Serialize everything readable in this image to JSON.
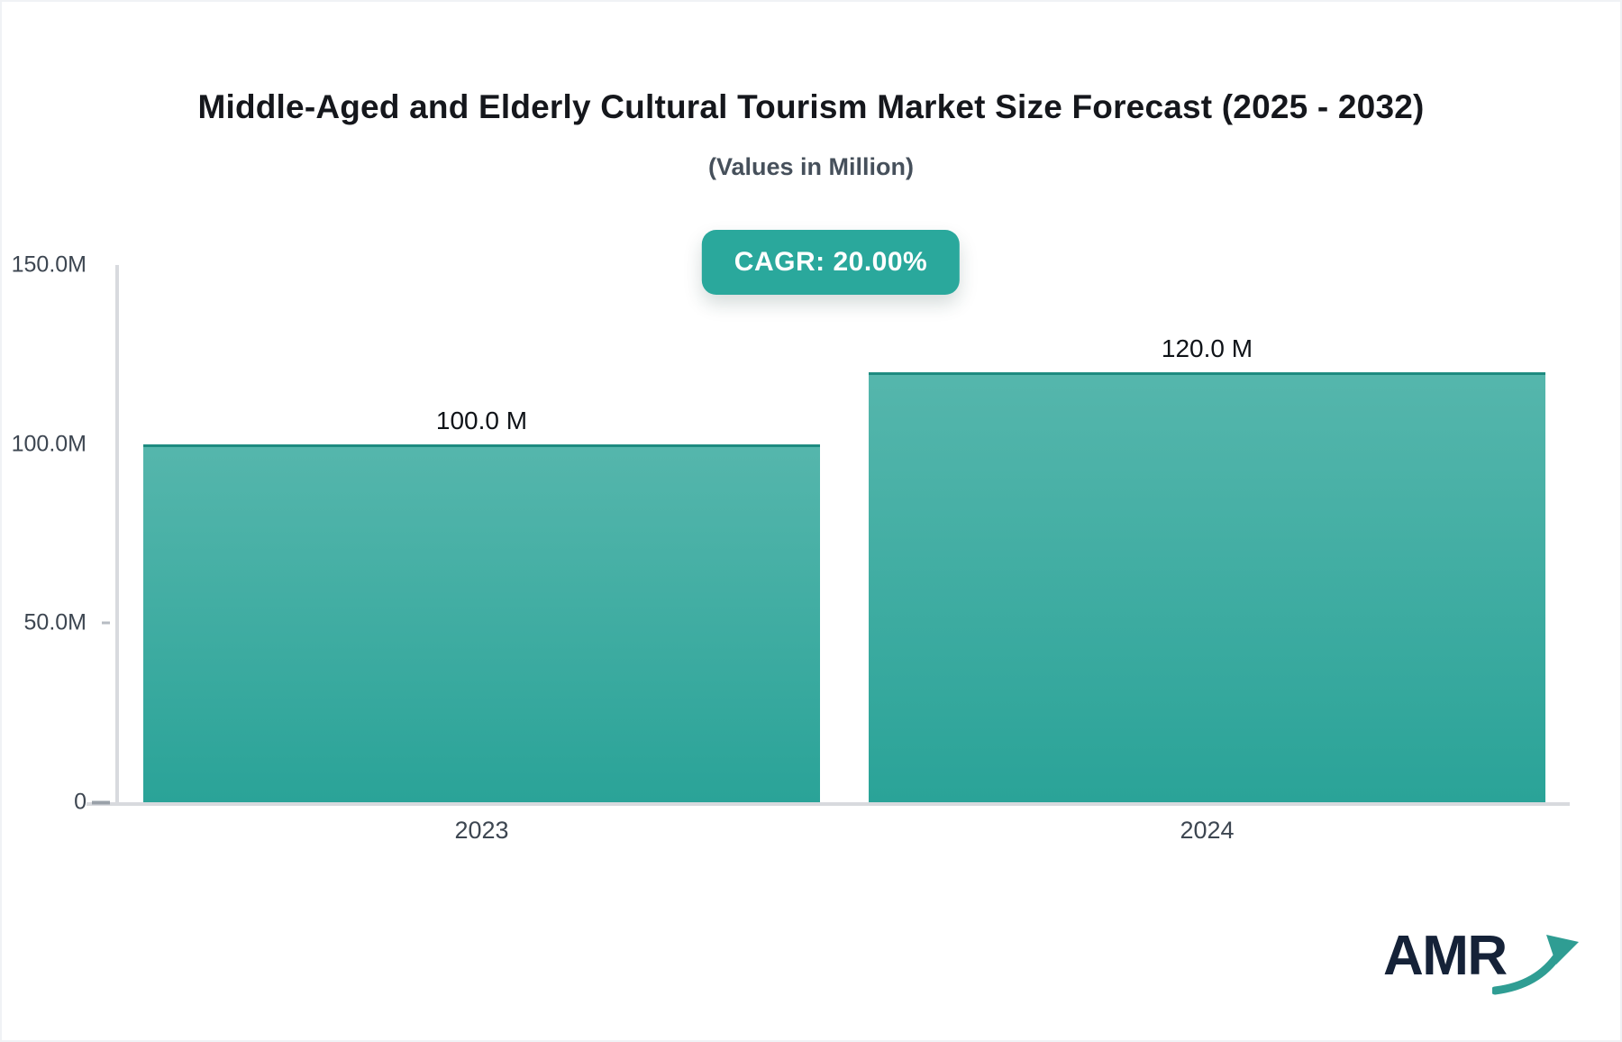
{
  "page": {
    "title": "Middle-Aged and Elderly Cultural Tourism Market Size Forecast (2025 - 2032)",
    "subtitle": "(Values in Million)",
    "cagr_badge": "CAGR: 20.00%",
    "logo_text": "AMR"
  },
  "colors": {
    "badge_bg": "#2aa89c",
    "bar_gradient_top": "#55b6ac",
    "bar_gradient_bottom": "#2aa398",
    "bar_top_border": "#1e8b80",
    "axis_line": "#d8dade",
    "tick_text": "#3d4651",
    "title_text": "#15171c",
    "logo_navy": "#152238",
    "logo_arrow_teal": "#2f9d93"
  },
  "chart_data": {
    "type": "bar",
    "categories": [
      "2023",
      "2024"
    ],
    "values": [
      100.0,
      120.0
    ],
    "value_labels": [
      "100.0 M",
      "120.0 M"
    ],
    "unit": "Million",
    "title": "Middle-Aged and Elderly Cultural Tourism Market Size Forecast (2025 - 2032)",
    "subtitle": "(Values in Million)",
    "xlabel": "",
    "ylabel": "",
    "ylim": [
      0,
      150
    ],
    "y_ticks": [
      {
        "label": "150.0M",
        "value": 150,
        "tick_mark": "none"
      },
      {
        "label": "100.0M",
        "value": 100,
        "tick_mark": "none"
      },
      {
        "label": "50.0M",
        "value": 50,
        "tick_mark": "short"
      },
      {
        "label": "0",
        "value": 0,
        "tick_mark": "long"
      }
    ],
    "grid": false,
    "legend": false,
    "annotations": [
      "CAGR: 20.00%"
    ]
  }
}
